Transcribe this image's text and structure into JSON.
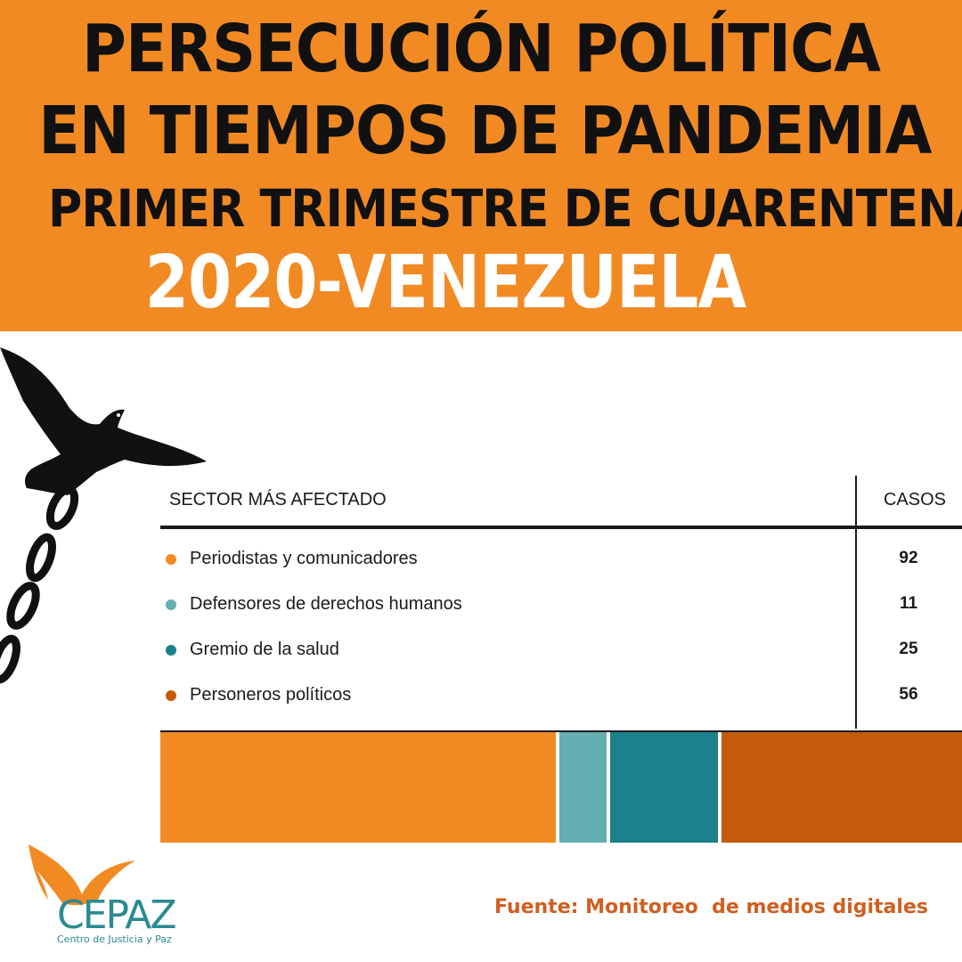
{
  "header": {
    "line1": "PERSECUCIÓN POLÍTICA",
    "line2": "EN TIEMPOS DE PANDEMIA",
    "line3": "PRIMER TRIMESTRE DE CUARENTENA",
    "line4": "2020-VENEZUELA"
  },
  "colors": {
    "banner": "#f28a24",
    "periodistas": "#f28a24",
    "defensores": "#64aeb2",
    "salud": "#1b828b",
    "politicos": "#c45b0b",
    "source_text": "#cf5f22",
    "logo_teal": "#2a8b91"
  },
  "chart_data": {
    "type": "table",
    "columns": [
      "SECTOR MÁS AFECTADO",
      "CASOS"
    ],
    "categories": [
      "Periodistas y comunicadores",
      "Defensores de derechos humanos",
      "Gremio de la salud",
      "Personeros políticos"
    ],
    "values": [
      92,
      11,
      25,
      56
    ],
    "series_colors": [
      "#f28a24",
      "#64aeb2",
      "#1b828b",
      "#c45b0b"
    ],
    "stacked_bar": true
  },
  "source": "Fuente: Monitoreo  de medios digitales",
  "logo": {
    "name": "CEPAZ",
    "subtitle": "Centro de Justicia y Paz"
  },
  "icons": [
    "dove-icon",
    "chain-icon",
    "cepaz-bird-logo-icon"
  ]
}
